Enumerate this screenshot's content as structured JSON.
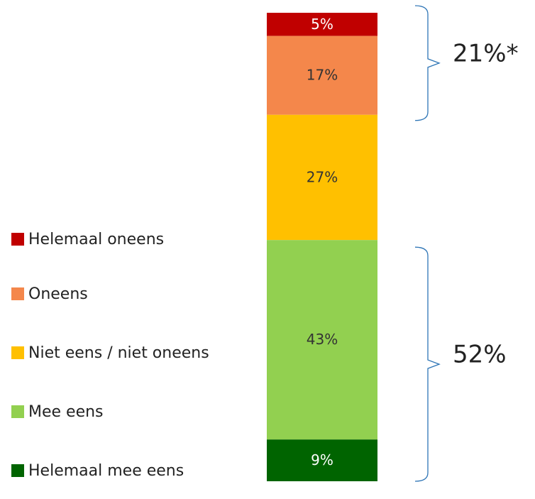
{
  "chart_data": {
    "type": "stacked_bar",
    "series": [
      {
        "name": "Helemaal oneens",
        "color": "#c00000",
        "values": [
          5
        ],
        "value_labels": [
          "5%"
        ]
      },
      {
        "name": "Oneens",
        "color": "#f4874b",
        "values": [
          17
        ],
        "value_labels": [
          "17%"
        ]
      },
      {
        "name": "Niet eens / niet oneens",
        "color": "#ffc000",
        "values": [
          27
        ],
        "value_labels": [
          "27%"
        ]
      },
      {
        "name": "Mee eens",
        "color": "#92d050",
        "values": [
          43
        ],
        "value_labels": [
          "43%"
        ]
      },
      {
        "name": "Helemaal mee eens",
        "color": "#006400",
        "values": [
          9
        ],
        "value_labels": [
          "9%"
        ]
      }
    ],
    "annotations": [
      "21%*",
      "52%"
    ]
  }
}
